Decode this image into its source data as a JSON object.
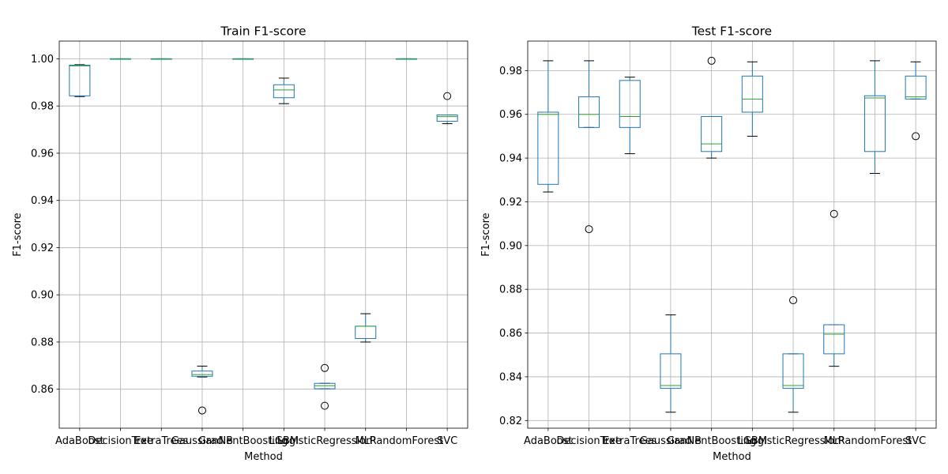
{
  "figure": {},
  "chart_data": [
    {
      "type": "box",
      "title": "Train F1-score",
      "xlabel": "Method",
      "ylabel": "F1-score",
      "ylim": [
        0.8435,
        1.0075
      ],
      "yticks": [
        0.86,
        0.88,
        0.9,
        0.92,
        0.94,
        0.96,
        0.98,
        1.0
      ],
      "ytick_labels": [
        "0.86",
        "0.88",
        "0.90",
        "0.92",
        "0.94",
        "0.96",
        "0.98",
        "1.00"
      ],
      "grid": true,
      "colors": {
        "box": "#1f77b4",
        "median": "#2ca02c",
        "grid": "#b0b0b0"
      },
      "categories": [
        "AdaBoost",
        "DecisionTree",
        "ExtraTrees",
        "GaussianNB",
        "GradientBoosting",
        "LGBM",
        "LogisticRegression",
        "MLP",
        "RandomForest",
        "SVC"
      ],
      "boxes": [
        {
          "q1": 0.9843,
          "median": 0.997,
          "q3": 0.9973,
          "whislo": 0.984,
          "whishi": 0.9975,
          "fliers": []
        },
        {
          "q1": 0.9998,
          "median": 1.0,
          "q3": 1.0,
          "whislo": 0.9998,
          "whishi": 1.0,
          "fliers": []
        },
        {
          "q1": 0.9998,
          "median": 1.0,
          "q3": 1.0,
          "whislo": 0.9998,
          "whishi": 1.0,
          "fliers": []
        },
        {
          "q1": 0.8655,
          "median": 0.8662,
          "q3": 0.8677,
          "whislo": 0.8652,
          "whishi": 0.8698,
          "fliers": [
            0.851
          ]
        },
        {
          "q1": 0.9998,
          "median": 1.0,
          "q3": 1.0,
          "whislo": 0.9998,
          "whishi": 1.0,
          "fliers": []
        },
        {
          "q1": 0.9835,
          "median": 0.9868,
          "q3": 0.989,
          "whislo": 0.981,
          "whishi": 0.9918,
          "fliers": []
        },
        {
          "q1": 0.8602,
          "median": 0.8615,
          "q3": 0.8625,
          "whislo": 0.8602,
          "whishi": 0.8625,
          "fliers": [
            0.869,
            0.853
          ]
        },
        {
          "q1": 0.8815,
          "median": 0.8867,
          "q3": 0.8867,
          "whislo": 0.88,
          "whishi": 0.892,
          "fliers": []
        },
        {
          "q1": 0.9998,
          "median": 1.0,
          "q3": 1.0,
          "whislo": 0.9998,
          "whishi": 1.0,
          "fliers": []
        },
        {
          "q1": 0.9735,
          "median": 0.9755,
          "q3": 0.9762,
          "whislo": 0.9725,
          "whishi": 0.9762,
          "fliers": [
            0.9842
          ]
        }
      ]
    },
    {
      "type": "box",
      "title": "Test F1-score",
      "xlabel": "Method",
      "ylabel": "F1-score",
      "ylim": [
        0.8165,
        0.9935
      ],
      "yticks": [
        0.82,
        0.84,
        0.86,
        0.88,
        0.9,
        0.92,
        0.94,
        0.96,
        0.98
      ],
      "ytick_labels": [
        "0.82",
        "0.84",
        "0.86",
        "0.88",
        "0.90",
        "0.92",
        "0.94",
        "0.96",
        "0.98"
      ],
      "grid": true,
      "colors": {
        "box": "#1f77b4",
        "median": "#2ca02c",
        "grid": "#b0b0b0"
      },
      "categories": [
        "AdaBoost",
        "DecisionTree",
        "ExtraTrees",
        "GaussianNB",
        "GradientBoosting",
        "LGBM",
        "LogisticRegression",
        "MLP",
        "RandomForest",
        "SVC"
      ],
      "boxes": [
        {
          "q1": 0.928,
          "median": 0.96,
          "q3": 0.961,
          "whislo": 0.9245,
          "whishi": 0.9845,
          "fliers": []
        },
        {
          "q1": 0.954,
          "median": 0.96,
          "q3": 0.968,
          "whislo": 0.954,
          "whishi": 0.9845,
          "fliers": [
            0.9075
          ]
        },
        {
          "q1": 0.954,
          "median": 0.959,
          "q3": 0.9755,
          "whislo": 0.942,
          "whishi": 0.977,
          "fliers": []
        },
        {
          "q1": 0.8347,
          "median": 0.836,
          "q3": 0.8505,
          "whislo": 0.8238,
          "whishi": 0.8683,
          "fliers": []
        },
        {
          "q1": 0.943,
          "median": 0.9465,
          "q3": 0.959,
          "whislo": 0.94,
          "whishi": 0.959,
          "fliers": [
            0.9845
          ]
        },
        {
          "q1": 0.961,
          "median": 0.967,
          "q3": 0.9775,
          "whislo": 0.95,
          "whishi": 0.984,
          "fliers": []
        },
        {
          "q1": 0.8347,
          "median": 0.836,
          "q3": 0.8505,
          "whislo": 0.8238,
          "whishi": 0.8505,
          "fliers": [
            0.875
          ]
        },
        {
          "q1": 0.8505,
          "median": 0.8595,
          "q3": 0.8638,
          "whislo": 0.8448,
          "whishi": 0.8638,
          "fliers": [
            0.9145
          ]
        },
        {
          "q1": 0.943,
          "median": 0.9675,
          "q3": 0.9685,
          "whislo": 0.933,
          "whishi": 0.9845,
          "fliers": []
        },
        {
          "q1": 0.967,
          "median": 0.968,
          "q3": 0.9775,
          "whislo": 0.967,
          "whishi": 0.984,
          "fliers": [
            0.95
          ]
        }
      ]
    }
  ]
}
